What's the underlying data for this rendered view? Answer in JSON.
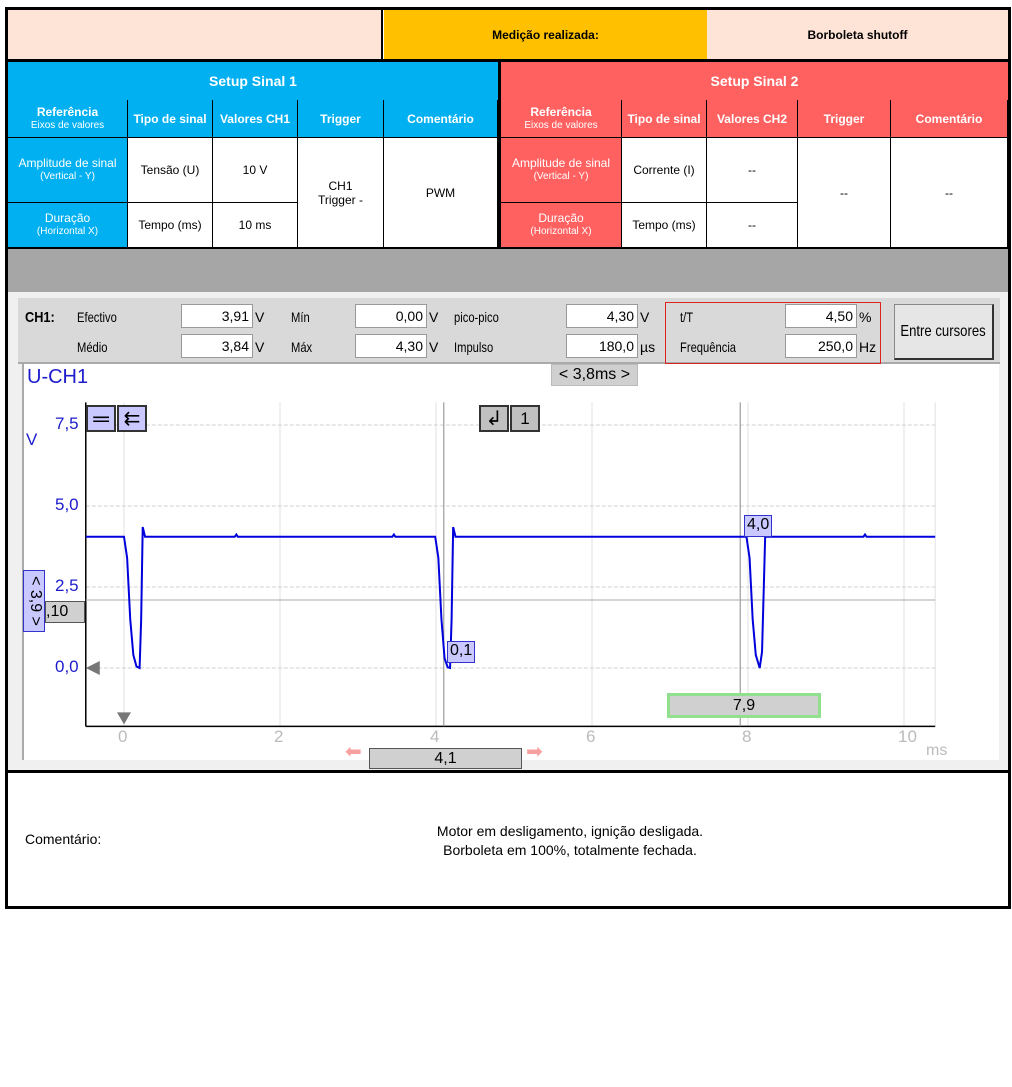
{
  "header": {
    "measurement_label": "Medição realizada:",
    "measurement_value": "Borboleta shutoff"
  },
  "setup1": {
    "title": "Setup Sinal 1",
    "headers": [
      {
        "main": "Referência",
        "sub": "Eixos de valores"
      },
      {
        "main": "Tipo de sinal"
      },
      {
        "main": "Valores CH1"
      },
      {
        "main": "Trigger"
      },
      {
        "main": "Comentário"
      }
    ],
    "rows": [
      {
        "ref": "Amplitude de sinal",
        "ref_sub": "(Vertical - Y)",
        "type": "Tensão (U)",
        "value": "10 V"
      },
      {
        "ref": "Duração",
        "ref_sub": "(Horizontal X)",
        "type": "Tempo (ms)",
        "value": "10 ms"
      }
    ],
    "trigger": "CH1",
    "trigger_sub": "Trigger -",
    "comment": "PWM"
  },
  "setup2": {
    "title": "Setup Sinal 2",
    "headers": [
      {
        "main": "Referência",
        "sub": "Eixos de valores"
      },
      {
        "main": "Tipo de sinal"
      },
      {
        "main": "Valores CH2"
      },
      {
        "main": "Trigger"
      },
      {
        "main": "Comentário"
      }
    ],
    "rows": [
      {
        "ref": "Amplitude de sinal",
        "ref_sub": "(Vertical - Y)",
        "type": "Corrente (I)",
        "value": "--"
      },
      {
        "ref": "Duração",
        "ref_sub": "(Horizontal X)",
        "type": "Tempo (ms)",
        "value": "--"
      }
    ],
    "trigger": "--",
    "comment": "--"
  },
  "measurements": {
    "channel": "CH1:",
    "items": [
      {
        "label": "Efectivo",
        "value": "3,91",
        "unit": "V"
      },
      {
        "label": "Médio",
        "value": "3,84",
        "unit": "V"
      },
      {
        "label": "Mín",
        "value": "0,00",
        "unit": "V"
      },
      {
        "label": "Máx",
        "value": "4,30",
        "unit": "V"
      },
      {
        "label": "pico-pico",
        "value": "4,30",
        "unit": "V"
      },
      {
        "label": "Impulso",
        "value": "180,0",
        "unit": "µs"
      },
      {
        "label": "t/T",
        "value": "4,50",
        "unit": "%"
      },
      {
        "label": "Frequência",
        "value": "250,0",
        "unit": "Hz"
      }
    ],
    "between_cursors_button": "Entre cursores"
  },
  "scope": {
    "channel_title": "U-CH1",
    "time_delta": "< 3,8ms >",
    "volt_delta": "< 3,9 >",
    "h_cursor_label": ",10",
    "cursor_a": "4,1",
    "cursor_b": "7,9",
    "cursor_a_value": "0,1",
    "cursor_b_value": "4,0",
    "trigger_channel": "1"
  },
  "chart_data": {
    "type": "line",
    "ylabel": "V",
    "xlabel": "ms",
    "xlim": [
      -0.49,
      10.4
    ],
    "ylim": [
      -1.8,
      8.2
    ],
    "xticks": [
      "0",
      "2",
      "4",
      "6",
      "8",
      "10"
    ],
    "yticks": [
      "7,5",
      "5,0",
      "2,5",
      "0,0"
    ],
    "grid": true,
    "line_color": "#0000dd",
    "series": [
      {
        "points": [
          [
            -0.49,
            4.05
          ],
          [
            0,
            4.05
          ],
          [
            0.04,
            3.4
          ],
          [
            0.08,
            1.5
          ],
          [
            0.12,
            0.4
          ],
          [
            0.16,
            0.05
          ],
          [
            0.2,
            0
          ],
          [
            0.22,
            1.5
          ],
          [
            0.24,
            4.35
          ],
          [
            0.27,
            4.05
          ],
          [
            1.42,
            4.05
          ],
          [
            1.44,
            4.12
          ],
          [
            1.46,
            4.05
          ],
          [
            3.44,
            4.05
          ],
          [
            3.46,
            4.12
          ],
          [
            3.48,
            4.05
          ],
          [
            3.99,
            4.05
          ],
          [
            4.03,
            3.4
          ],
          [
            4.07,
            1.5
          ],
          [
            4.11,
            0.3
          ],
          [
            4.15,
            0.02
          ],
          [
            4.18,
            0
          ],
          [
            4.2,
            1.5
          ],
          [
            4.22,
            4.35
          ],
          [
            4.25,
            4.05
          ],
          [
            7.98,
            4.05
          ],
          [
            8.02,
            3.4
          ],
          [
            8.06,
            1.5
          ],
          [
            8.1,
            0.4
          ],
          [
            8.15,
            0
          ],
          [
            8.18,
            0.5
          ],
          [
            8.22,
            4.05
          ],
          [
            9.48,
            4.05
          ],
          [
            9.5,
            4.12
          ],
          [
            9.52,
            4.05
          ],
          [
            10.4,
            4.05
          ]
        ]
      }
    ],
    "cursors": {
      "vertical": [
        4.1,
        7.9
      ],
      "horizontal": 2.1
    }
  },
  "comment": {
    "label": "Comentário:",
    "lines": [
      "Motor em desligamento, ignição desligada.",
      "Borboleta em 100%, totalmente fechada."
    ]
  }
}
